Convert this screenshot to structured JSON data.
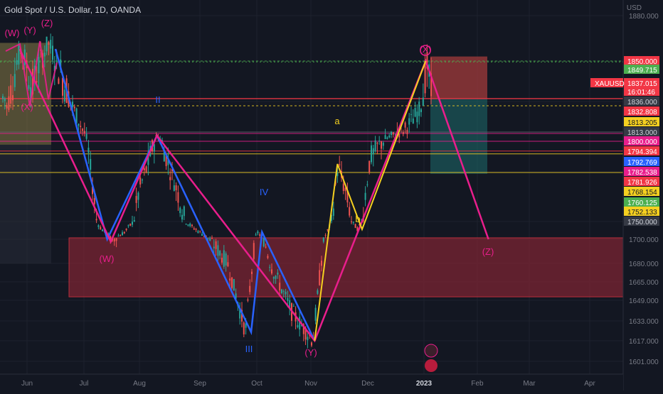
{
  "header": {
    "symbol_title": "Gold Spot / U.S. Dollar, 1D, OANDA"
  },
  "axis": {
    "currency": "USD"
  },
  "colors": {
    "background": "#131722",
    "grid": "#1e222d",
    "up": "#26a69a",
    "down": "#ef5350",
    "pink": "#e91e8c",
    "blue": "#2962ff",
    "yellow": "#f5d020",
    "red_zone": "#7a2433",
    "yellow_zone": "#c9b25a",
    "teal_zone": "#1d6b6b",
    "price_line": "#f23645"
  },
  "chart_data": {
    "type": "candlestick",
    "title": "Gold Spot / U.S. Dollar, 1D, OANDA",
    "ylabel": "USD",
    "ylim": [
      1590,
      1900
    ],
    "x_ticks": [
      "Jun",
      "Jul",
      "Aug",
      "Sep",
      "Oct",
      "Nov",
      "Dec",
      "2023",
      "Feb",
      "Mar",
      "Apr"
    ],
    "y_ticks": [
      1880.0,
      1850.0,
      1700.0,
      1680.0,
      1665.0,
      1649.0,
      1633.0,
      1617.0,
      1601.0
    ],
    "price_labels": [
      {
        "value": "1850.000",
        "color": "#f23645",
        "text_color": "#ffffff"
      },
      {
        "value": "1849.715",
        "color": "#4caf50",
        "text_color": "#ffffff"
      },
      {
        "value": "1837.015",
        "color": "#f23645",
        "text_color": "#ffffff"
      },
      {
        "value": "16:01:46",
        "color": "#f23645",
        "text_color": "#ffffff"
      },
      {
        "value": "1836.000",
        "color": "#363a45",
        "text_color": "#d1d4dc"
      },
      {
        "value": "1832.808",
        "color": "#f23645",
        "text_color": "#ffffff"
      },
      {
        "value": "1813.205",
        "color": "#f5d020",
        "text_color": "#131722"
      },
      {
        "value": "1813.000",
        "color": "#363a45",
        "text_color": "#d1d4dc"
      },
      {
        "value": "1800.000",
        "color": "#e91e8c",
        "text_color": "#ffffff"
      },
      {
        "value": "1794.394",
        "color": "#f23645",
        "text_color": "#ffffff"
      },
      {
        "value": "1792.769",
        "color": "#2962ff",
        "text_color": "#ffffff"
      },
      {
        "value": "1782.538",
        "color": "#e91e8c",
        "text_color": "#ffffff"
      },
      {
        "value": "1781.926",
        "color": "#f23645",
        "text_color": "#ffffff"
      },
      {
        "value": "1768.154",
        "color": "#f5d020",
        "text_color": "#131722"
      },
      {
        "value": "1760.125",
        "color": "#4caf50",
        "text_color": "#ffffff"
      },
      {
        "value": "1752.133",
        "color": "#f5d020",
        "text_color": "#131722"
      },
      {
        "value": "1750.000",
        "color": "#363a45",
        "text_color": "#d1d4dc"
      }
    ],
    "symbol_tag": "XAUUSD",
    "wave_labels": [
      {
        "text": "(W)",
        "color": "#e91e8c"
      },
      {
        "text": "(Y)",
        "color": "#e91e8c"
      },
      {
        "text": "(Z)",
        "color": "#e91e8c"
      },
      {
        "text": "(X)",
        "color": "#e91e8c"
      },
      {
        "text": "II",
        "color": "#2962ff"
      },
      {
        "text": "(W)",
        "color": "#e91e8c"
      },
      {
        "text": "IV",
        "color": "#2962ff"
      },
      {
        "text": "III",
        "color": "#2962ff"
      },
      {
        "text": "(Y)",
        "color": "#e91e8c"
      },
      {
        "text": "a",
        "color": "#f5d020"
      },
      {
        "text": "b",
        "color": "#f5d020"
      },
      {
        "text": "(X)",
        "color": "#e91e8c"
      },
      {
        "text": "(Z)",
        "color": "#e91e8c"
      }
    ],
    "pink_path": [
      {
        "date": "May 28",
        "price": 1858
      },
      {
        "date": "Jul 16",
        "price": 1698
      },
      {
        "date": "Aug 10",
        "price": 1808
      },
      {
        "date": "Nov 3",
        "price": 1617
      },
      {
        "date": "Jan 2",
        "price": 1850
      },
      {
        "date": "Feb 7",
        "price": 1700
      }
    ],
    "blue_path": [
      {
        "date": "Jun 16",
        "price": 1858
      },
      {
        "date": "Jul 14",
        "price": 1700
      },
      {
        "date": "Aug 10",
        "price": 1808
      },
      {
        "date": "Sep 28",
        "price": 1624
      },
      {
        "date": "Oct 4",
        "price": 1720
      },
      {
        "date": "Nov 3",
        "price": 1617
      }
    ],
    "yellow_path": [
      {
        "date": "Nov 3",
        "price": 1617
      },
      {
        "date": "Nov 15",
        "price": 1787
      },
      {
        "date": "Nov 28",
        "price": 1728
      },
      {
        "date": "Jan 2",
        "price": 1850
      }
    ]
  }
}
